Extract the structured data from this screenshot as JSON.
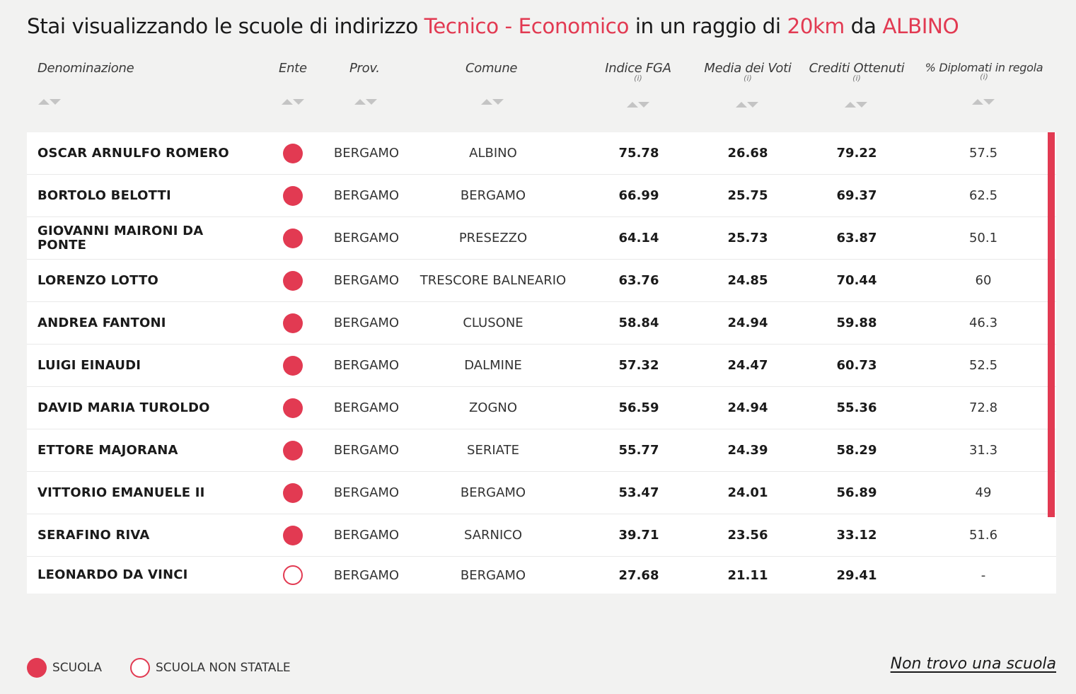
{
  "title": {
    "prefix": "Stai visualizzando le scuole di indirizzo ",
    "indirizzo": "Tecnico - Economico",
    "middle": " in un raggio di ",
    "radius": "20km",
    "da": " da ",
    "city": "ALBINO"
  },
  "columns": {
    "denominazione": "Denominazione",
    "ente": "Ente",
    "prov": "Prov.",
    "comune": "Comune",
    "fga": "Indice FGA",
    "media": "Media dei Voti",
    "crediti": "Crediti Ottenuti",
    "diplomati": "% Diplomati in regola",
    "info": "(i)"
  },
  "rows": [
    {
      "name": "OSCAR ARNULFO ROMERO",
      "ente": "statale",
      "prov": "BERGAMO",
      "comune": "ALBINO",
      "fga": "75.78",
      "media": "26.68",
      "crediti": "79.22",
      "diplomati": "57.5"
    },
    {
      "name": "BORTOLO BELOTTI",
      "ente": "statale",
      "prov": "BERGAMO",
      "comune": "BERGAMO",
      "fga": "66.99",
      "media": "25.75",
      "crediti": "69.37",
      "diplomati": "62.5"
    },
    {
      "name": "GIOVANNI MAIRONI DA PONTE",
      "ente": "statale",
      "prov": "BERGAMO",
      "comune": "PRESEZZO",
      "fga": "64.14",
      "media": "25.73",
      "crediti": "63.87",
      "diplomati": "50.1"
    },
    {
      "name": "LORENZO LOTTO",
      "ente": "statale",
      "prov": "BERGAMO",
      "comune": "TRESCORE BALNEARIO",
      "fga": "63.76",
      "media": "24.85",
      "crediti": "70.44",
      "diplomati": "60"
    },
    {
      "name": "ANDREA FANTONI",
      "ente": "statale",
      "prov": "BERGAMO",
      "comune": "CLUSONE",
      "fga": "58.84",
      "media": "24.94",
      "crediti": "59.88",
      "diplomati": "46.3"
    },
    {
      "name": "LUIGI EINAUDI",
      "ente": "statale",
      "prov": "BERGAMO",
      "comune": "DALMINE",
      "fga": "57.32",
      "media": "24.47",
      "crediti": "60.73",
      "diplomati": "52.5"
    },
    {
      "name": "DAVID MARIA TUROLDO",
      "ente": "statale",
      "prov": "BERGAMO",
      "comune": "ZOGNO",
      "fga": "56.59",
      "media": "24.94",
      "crediti": "55.36",
      "diplomati": "72.8"
    },
    {
      "name": "ETTORE MAJORANA",
      "ente": "statale",
      "prov": "BERGAMO",
      "comune": "SERIATE",
      "fga": "55.77",
      "media": "24.39",
      "crediti": "58.29",
      "diplomati": "31.3"
    },
    {
      "name": "VITTORIO EMANUELE II",
      "ente": "statale",
      "prov": "BERGAMO",
      "comune": "BERGAMO",
      "fga": "53.47",
      "media": "24.01",
      "crediti": "56.89",
      "diplomati": "49"
    },
    {
      "name": "SERAFINO RIVA",
      "ente": "statale",
      "prov": "BERGAMO",
      "comune": "SARNICO",
      "fga": "39.71",
      "media": "23.56",
      "crediti": "33.12",
      "diplomati": "51.6"
    },
    {
      "name": "LEONARDO DA VINCI",
      "ente": "non-statale",
      "prov": "BERGAMO",
      "comune": "BERGAMO",
      "fga": "27.68",
      "media": "21.11",
      "crediti": "29.41",
      "diplomati": "-"
    }
  ],
  "legend": {
    "scuola": "SCUOLA",
    "non_statale": "SCUOLA NON STATALE"
  },
  "not_found_link": "Non trovo una scuola",
  "colors": {
    "accent": "#e23a52",
    "background": "#f2f2f1"
  },
  "icons": {
    "sort": "sort-arrows-icon",
    "statale": "filled-circle-icon",
    "non_statale": "outline-circle-icon"
  }
}
